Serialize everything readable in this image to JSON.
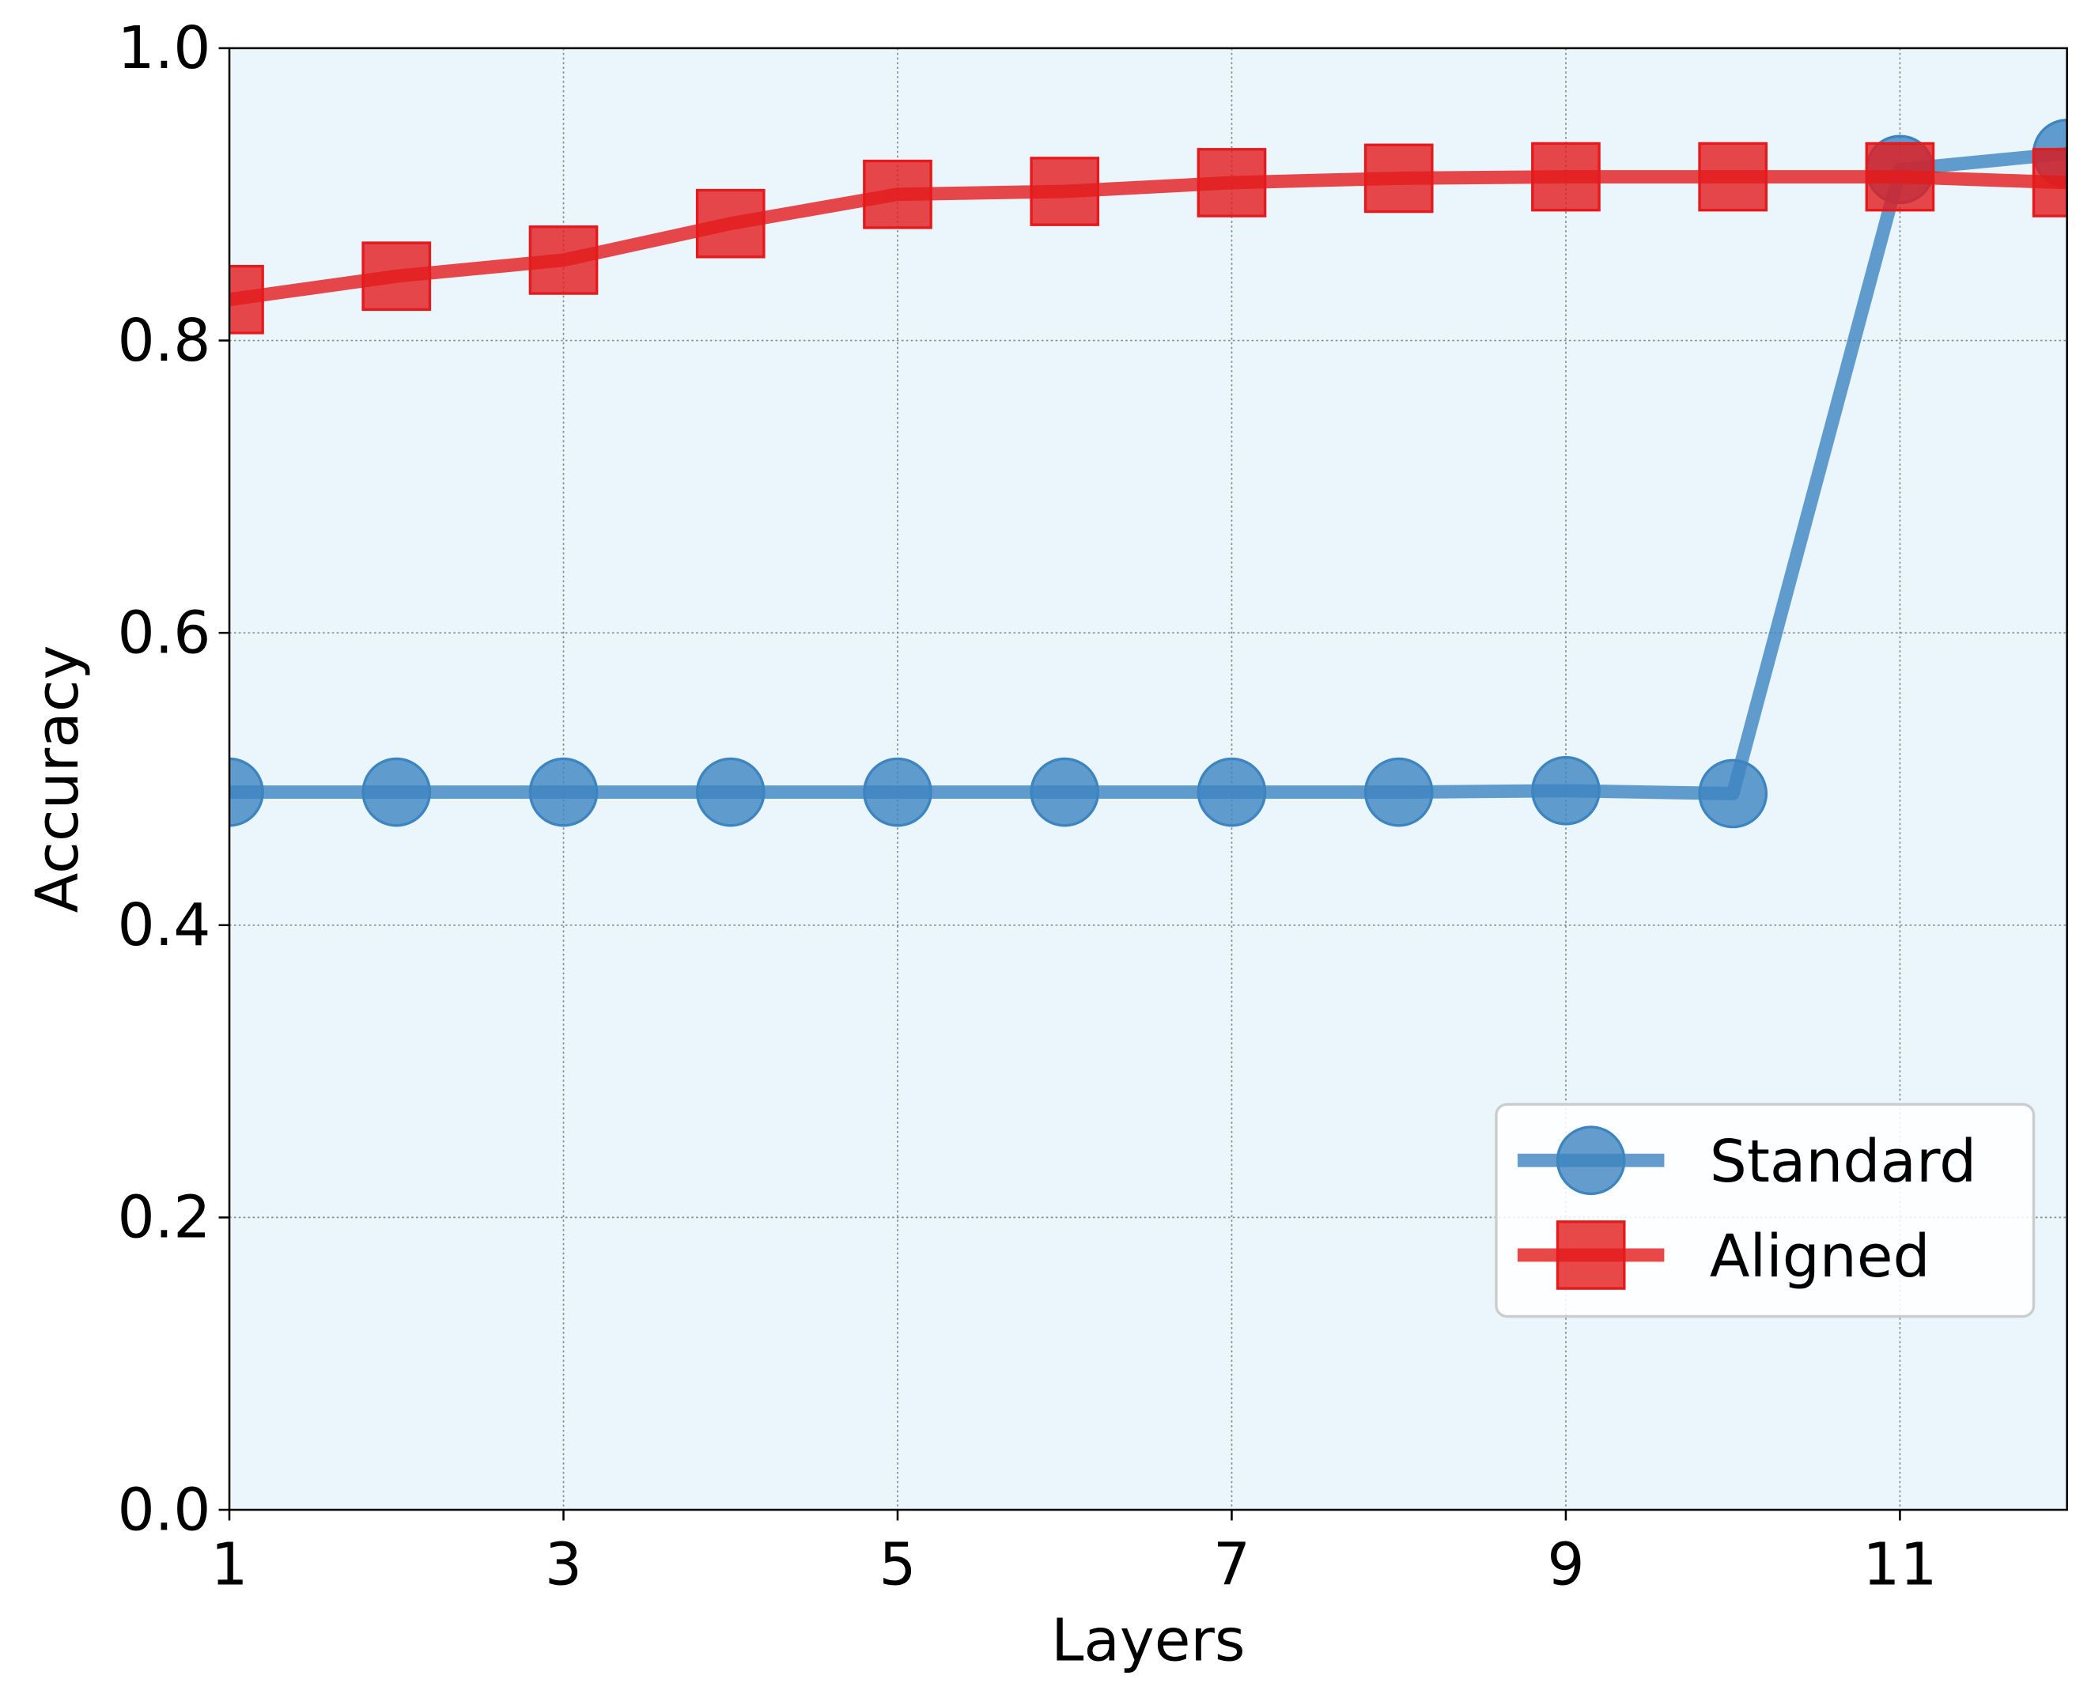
{
  "chart_data": {
    "type": "line",
    "x_label": "Layers",
    "y_label": "Accuracy",
    "x": [
      1,
      2,
      3,
      4,
      5,
      6,
      7,
      8,
      9,
      10,
      11,
      12
    ],
    "series": [
      {
        "name": "Standard",
        "color": "#3d85c0",
        "marker": "circle",
        "values": [
          0.491,
          0.491,
          0.491,
          0.491,
          0.491,
          0.491,
          0.491,
          0.491,
          0.492,
          0.49,
          0.917,
          0.928
        ]
      },
      {
        "name": "Aligned",
        "color": "#e41a1c",
        "marker": "square",
        "values": [
          0.828,
          0.844,
          0.855,
          0.88,
          0.9,
          0.902,
          0.908,
          0.911,
          0.912,
          0.912,
          0.912,
          0.908
        ]
      }
    ],
    "xlim": [
      1,
      12
    ],
    "xticks": [
      1,
      3,
      5,
      7,
      9,
      11
    ],
    "ylim": [
      0,
      1
    ],
    "yticks": [
      {
        "value": 0,
        "label": "0.0"
      },
      {
        "value": 0.2,
        "label": "0.2"
      },
      {
        "value": 0.4,
        "label": "0.4"
      },
      {
        "value": 0.6,
        "label": "0.6"
      },
      {
        "value": 0.8,
        "label": "0.8"
      },
      {
        "value": 1,
        "label": "1.0"
      }
    ],
    "grid": true,
    "background": "#eaf5fc",
    "legend": "lower right"
  }
}
